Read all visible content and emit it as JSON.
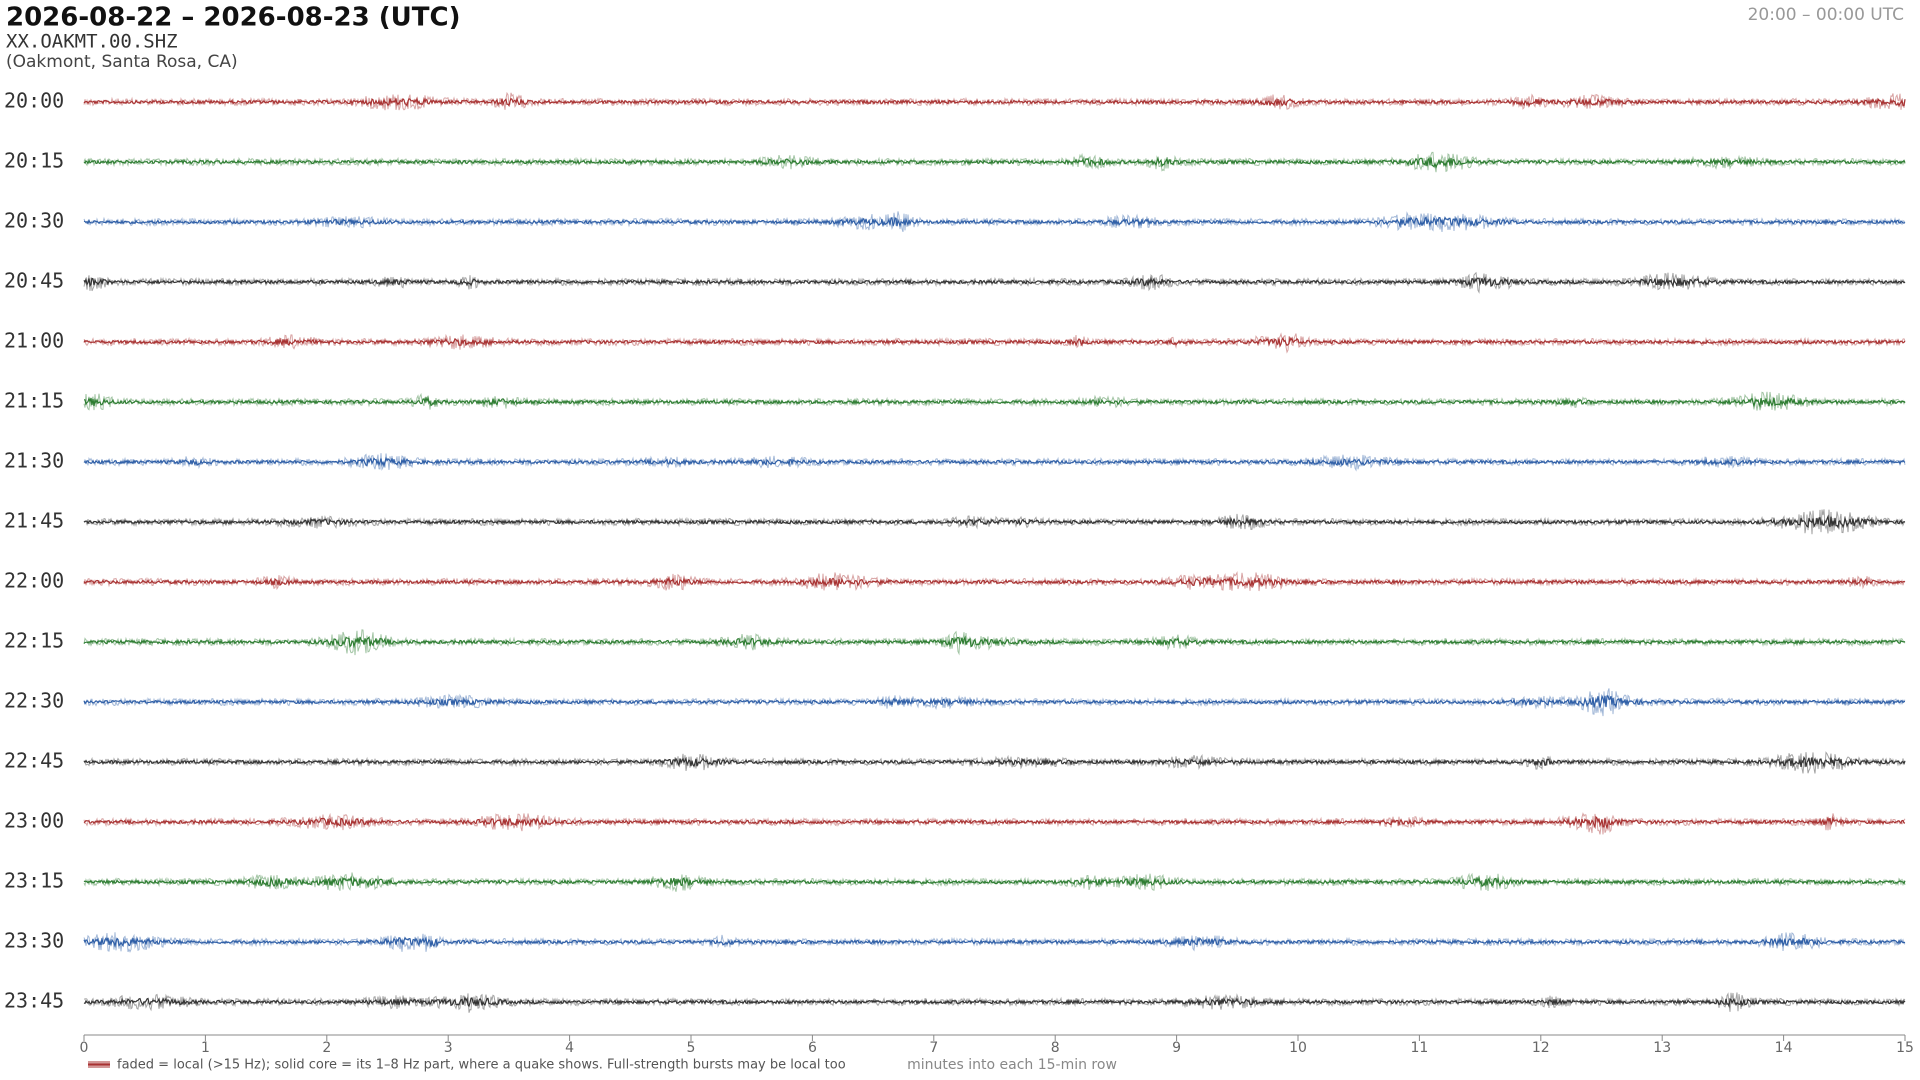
{
  "chart_data": {
    "type": "helicorder",
    "title": "2026-08-22 – 2026-08-23  (UTC)",
    "subtitle": "XX.OAKMT.00.SHZ",
    "location": "(Oakmont, Santa Rosa, CA)",
    "time_range": "20:00 – 00:00 UTC",
    "categories": [
      "20:00",
      "20:15",
      "20:30",
      "20:45",
      "21:00",
      "21:15",
      "21:30",
      "21:45",
      "22:00",
      "22:15",
      "22:30",
      "22:45",
      "23:00",
      "23:15",
      "23:30",
      "23:45"
    ],
    "colors": [
      "#a83232",
      "#2e7d32",
      "#2f5fa7",
      "#333333"
    ],
    "xlim": [
      0,
      15
    ],
    "xticks": [
      0,
      1,
      2,
      3,
      4,
      5,
      6,
      7,
      8,
      9,
      10,
      11,
      12,
      13,
      14,
      15
    ],
    "xlabel": "minutes into each 15-min row",
    "legend": "faded = local (>15 Hz); solid core = its 1–8 Hz part, where a quake shows. Full-strength bursts may be local too"
  }
}
